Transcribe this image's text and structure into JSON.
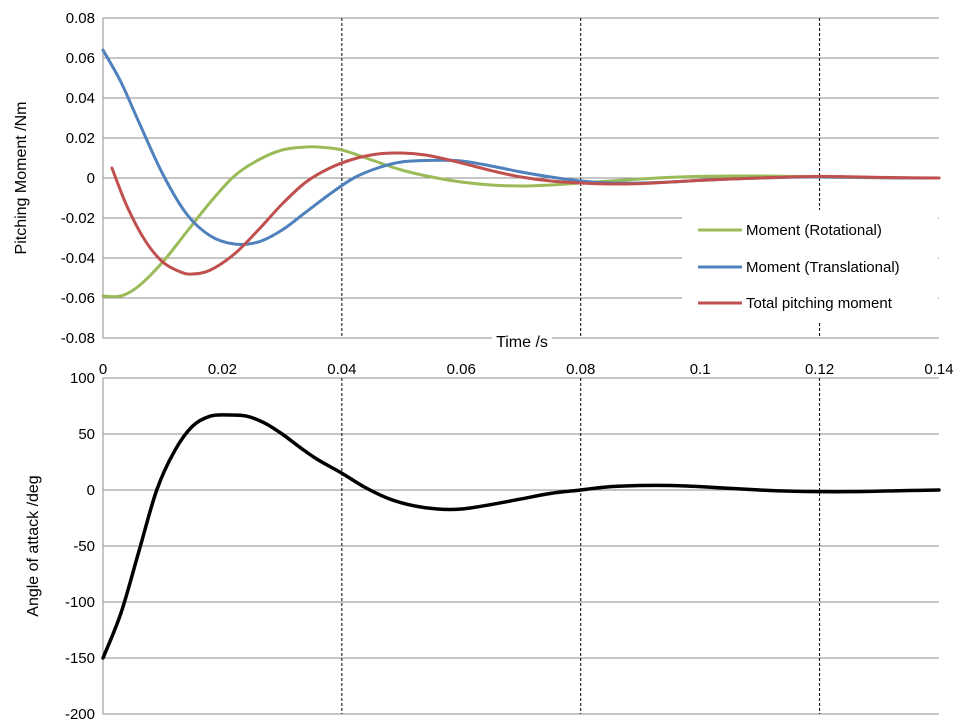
{
  "chart_data": [
    {
      "type": "line",
      "title": "",
      "xlabel": "Time /s",
      "ylabel": "Pitching Moment /Nm",
      "xlim": [
        0,
        0.14
      ],
      "ylim": [
        -0.08,
        0.08
      ],
      "x_ticks": [
        "0",
        "0.02",
        "0.04",
        "0.06",
        "0.08",
        "0.1",
        "0.12",
        "0.14"
      ],
      "y_ticks": [
        "0.08",
        "0.06",
        "0.04",
        "0.02",
        "0",
        "-0.02",
        "-0.04",
        "-0.06",
        "-0.08"
      ],
      "grid": "horizontal gridlines, dashed vertical lines at 0.04, 0.08, 0.12",
      "vlines": [
        0.04,
        0.08,
        0.12
      ],
      "legend_position": "right",
      "series": [
        {
          "name": "Moment (Rotational)",
          "color": "#9BBB59",
          "x": [
            0,
            0.003,
            0.006,
            0.01,
            0.014,
            0.018,
            0.022,
            0.026,
            0.03,
            0.034,
            0.036,
            0.04,
            0.045,
            0.05,
            0.055,
            0.06,
            0.065,
            0.07,
            0.075,
            0.08,
            0.085,
            0.09,
            0.095,
            0.1,
            0.105,
            0.11,
            0.115,
            0.12,
            0.125,
            0.13,
            0.135,
            0.14
          ],
          "y": [
            -0.059,
            -0.059,
            -0.054,
            -0.042,
            -0.027,
            -0.012,
            0.001,
            0.009,
            0.014,
            0.0155,
            0.0155,
            0.014,
            0.009,
            0.004,
            0.0005,
            -0.002,
            -0.0035,
            -0.004,
            -0.0035,
            -0.0025,
            -0.0015,
            -0.0005,
            0.0003,
            0.0008,
            0.001,
            0.001,
            0.0008,
            0.0005,
            0.0003,
            0.0001,
            0.0,
            0.0
          ]
        },
        {
          "name": "Moment (Translational)",
          "color": "#4F81BD",
          "x": [
            0,
            0.003,
            0.006,
            0.01,
            0.014,
            0.018,
            0.022,
            0.026,
            0.03,
            0.034,
            0.038,
            0.042,
            0.046,
            0.05,
            0.055,
            0.06,
            0.065,
            0.07,
            0.075,
            0.08,
            0.085,
            0.09,
            0.095,
            0.1,
            0.105,
            0.11,
            0.115,
            0.12,
            0.125,
            0.13,
            0.135,
            0.14
          ],
          "y": [
            0.064,
            0.048,
            0.028,
            0.002,
            -0.018,
            -0.029,
            -0.033,
            -0.032,
            -0.026,
            -0.017,
            -0.008,
            0.0,
            0.005,
            0.008,
            0.0088,
            0.0085,
            0.006,
            0.003,
            0.0005,
            -0.0015,
            -0.0025,
            -0.0025,
            -0.002,
            -0.0012,
            -0.0005,
            0.0,
            0.0004,
            0.0005,
            0.0004,
            0.0002,
            0.0,
            0.0
          ]
        },
        {
          "name": "Total pitching moment",
          "color": "#C0504D",
          "x": [
            0.0015,
            0.004,
            0.007,
            0.01,
            0.013,
            0.015,
            0.018,
            0.022,
            0.026,
            0.03,
            0.034,
            0.038,
            0.042,
            0.046,
            0.05,
            0.054,
            0.058,
            0.062,
            0.066,
            0.07,
            0.075,
            0.08,
            0.085,
            0.09,
            0.095,
            0.1,
            0.105,
            0.11,
            0.115,
            0.12,
            0.125,
            0.13,
            0.135,
            0.14
          ],
          "y": [
            0.005,
            -0.014,
            -0.031,
            -0.042,
            -0.047,
            -0.048,
            -0.046,
            -0.038,
            -0.026,
            -0.013,
            -0.002,
            0.005,
            0.0095,
            0.012,
            0.0125,
            0.0115,
            0.009,
            0.006,
            0.003,
            0.0005,
            -0.0015,
            -0.0025,
            -0.003,
            -0.0028,
            -0.002,
            -0.0012,
            -0.0005,
            0.0,
            0.0005,
            0.0008,
            0.0006,
            0.0003,
            0.0001,
            0.0
          ]
        }
      ]
    },
    {
      "type": "line",
      "title": "",
      "xlabel": "",
      "ylabel": "Angle of attack /deg",
      "xlim": [
        0,
        0.14
      ],
      "ylim": [
        -200,
        100
      ],
      "y_ticks": [
        "100",
        "50",
        "0",
        "-50",
        "-100",
        "-150",
        "-200"
      ],
      "grid": "horizontal gridlines, dashed vertical lines at 0.04, 0.08, 0.12",
      "vlines": [
        0.04,
        0.08,
        0.12
      ],
      "series": [
        {
          "color": "#000000",
          "x": [
            0,
            0.003,
            0.006,
            0.009,
            0.012,
            0.015,
            0.018,
            0.021,
            0.024,
            0.027,
            0.03,
            0.033,
            0.036,
            0.04,
            0.044,
            0.048,
            0.052,
            0.056,
            0.06,
            0.065,
            0.07,
            0.075,
            0.08,
            0.085,
            0.09,
            0.095,
            0.1,
            0.105,
            0.11,
            0.115,
            0.12,
            0.125,
            0.13,
            0.135,
            0.14
          ],
          "y": [
            -150,
            -110,
            -55,
            0,
            35,
            57,
            66,
            67,
            66,
            60,
            50,
            38,
            27,
            15,
            2,
            -8,
            -14,
            -17,
            -17,
            -13,
            -8,
            -3,
            0,
            3,
            4,
            4,
            3,
            1.5,
            0,
            -1,
            -1.5,
            -1.5,
            -1,
            -0.5,
            0
          ]
        }
      ]
    }
  ]
}
